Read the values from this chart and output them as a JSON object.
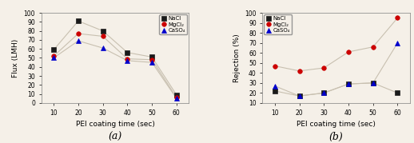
{
  "x": [
    10,
    20,
    30,
    40,
    50,
    60
  ],
  "flux": {
    "NaCl": [
      59,
      91,
      80,
      56,
      51,
      9
    ],
    "MgCl2": [
      52,
      77,
      74,
      49,
      48,
      6
    ],
    "CaSO4": [
      50,
      69,
      61,
      47,
      45,
      5
    ]
  },
  "rejection": {
    "NaCl": [
      22,
      17,
      20,
      29,
      30,
      20
    ],
    "MgCl2": [
      47,
      42,
      45,
      61,
      66,
      95
    ],
    "CaSO4": [
      27,
      17,
      20,
      29,
      30,
      70
    ]
  },
  "flux_ylim": [
    0,
    100
  ],
  "flux_yticks": [
    0,
    10,
    20,
    30,
    40,
    50,
    60,
    70,
    80,
    90,
    100
  ],
  "rejection_ylim": [
    10,
    100
  ],
  "rejection_yticks": [
    10,
    20,
    30,
    40,
    50,
    60,
    70,
    80,
    90,
    100
  ],
  "xlabel": "PEI coating time (sec)",
  "flux_ylabel": "Flux (LMH)",
  "rejection_ylabel": "Rejection (%)",
  "label_NaCl": "NaCl",
  "label_MgCl2": "MgCl₂",
  "label_CaSO4": "CaSO₄",
  "color_NaCl": "#1a1a1a",
  "color_MgCl2": "#cc0000",
  "color_CaSO4": "#0000cc",
  "line_color": "#c8c0b0",
  "marker_NaCl": "s",
  "marker_MgCl2": "o",
  "marker_CaSO4": "^",
  "caption_a": "(a)",
  "caption_b": "(b)",
  "xticks": [
    10,
    20,
    30,
    40,
    50,
    60
  ],
  "bg_color": "#f5f0e8"
}
